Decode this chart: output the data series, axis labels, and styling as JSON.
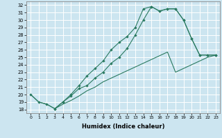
{
  "xlabel": "Humidex (Indice chaleur)",
  "xlim": [
    -0.5,
    23.5
  ],
  "ylim": [
    17.5,
    32.5
  ],
  "xticks": [
    0,
    1,
    2,
    3,
    4,
    5,
    6,
    7,
    8,
    9,
    10,
    11,
    12,
    13,
    14,
    15,
    16,
    17,
    18,
    19,
    20,
    21,
    22,
    23
  ],
  "yticks": [
    18,
    19,
    20,
    21,
    22,
    23,
    24,
    25,
    26,
    27,
    28,
    29,
    30,
    31,
    32
  ],
  "bg_color": "#cce5f0",
  "grid_color": "#ffffff",
  "line_color": "#2a7a60",
  "line1_x": [
    0,
    1,
    2,
    3,
    4,
    5,
    6,
    7,
    8,
    9,
    10,
    11,
    12,
    13,
    14,
    15,
    16,
    17,
    18,
    19,
    20,
    21,
    22,
    23
  ],
  "line1_y": [
    20.0,
    19.0,
    18.7,
    18.1,
    18.7,
    19.2,
    19.8,
    20.5,
    21.0,
    21.7,
    22.2,
    22.7,
    23.2,
    23.7,
    24.2,
    24.7,
    25.2,
    25.7,
    23.0,
    23.5,
    24.0,
    24.5,
    25.0,
    25.3
  ],
  "line2_x": [
    3,
    4,
    5,
    6,
    7,
    8,
    9,
    10,
    11,
    12,
    13,
    14,
    15,
    16,
    17,
    18,
    19,
    20,
    21,
    22,
    23
  ],
  "line2_y": [
    18.1,
    19.0,
    20.0,
    21.2,
    22.5,
    23.5,
    24.5,
    26.0,
    27.0,
    27.8,
    29.0,
    31.5,
    31.8,
    31.2,
    31.5,
    31.5,
    30.0,
    27.5,
    25.3,
    25.3,
    25.3
  ],
  "line3_x": [
    0,
    1,
    2,
    3,
    4,
    5,
    6,
    7,
    8,
    9,
    10,
    11,
    12,
    13,
    14,
    15,
    16,
    17,
    18,
    19,
    20,
    21,
    22,
    23
  ],
  "line3_y": [
    20.0,
    19.0,
    18.7,
    18.1,
    19.0,
    19.8,
    20.8,
    21.2,
    22.2,
    23.0,
    24.2,
    25.0,
    26.2,
    28.0,
    30.0,
    31.8,
    31.2,
    31.5,
    31.5,
    30.0,
    27.5,
    25.3,
    25.3,
    25.3
  ]
}
